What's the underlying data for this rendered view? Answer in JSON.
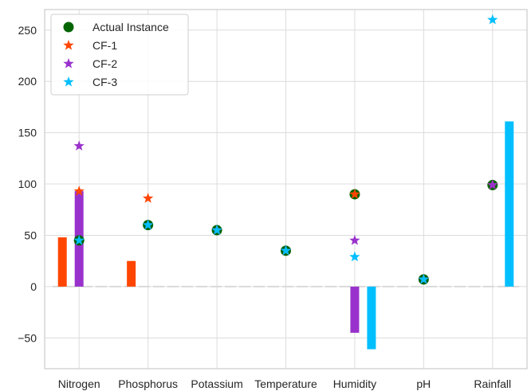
{
  "chart_data": {
    "type": "bar",
    "categories": [
      "Nitrogen",
      "Phosphorus",
      "Potassium",
      "Temperature",
      "Humidity",
      "pH",
      "Rainfall"
    ],
    "ylim": [
      -80,
      270
    ],
    "yticks": [
      -50,
      0,
      50,
      100,
      150,
      200,
      250
    ],
    "grid": true,
    "legend_position": "top-left",
    "bars": [
      {
        "name": "CF-1",
        "color": "#ff4500",
        "values": [
          48,
          25,
          0,
          0,
          0,
          0,
          0
        ]
      },
      {
        "name": "CF-2",
        "color": "#9932cc",
        "values": [
          93,
          0,
          0,
          0,
          -45,
          0,
          0
        ]
      },
      {
        "name": "CF-3",
        "color": "#00bfff",
        "values": [
          0,
          0,
          0,
          0,
          -61,
          0,
          161
        ]
      }
    ],
    "markers": [
      {
        "name": "Actual Instance",
        "shape": "circle",
        "color": "#006400",
        "values": [
          45,
          60,
          55,
          35,
          90,
          7,
          99
        ]
      },
      {
        "name": "CF-1",
        "shape": "star",
        "color": "#ff4500",
        "values": [
          93,
          86,
          55,
          35,
          90,
          7,
          99
        ]
      },
      {
        "name": "CF-2",
        "shape": "star",
        "color": "#9932cc",
        "values": [
          137,
          60,
          55,
          35,
          45,
          7,
          99
        ]
      },
      {
        "name": "CF-3",
        "shape": "star",
        "color": "#00bfff",
        "values": [
          45,
          60,
          55,
          35,
          29,
          7,
          260
        ]
      }
    ],
    "legend": [
      {
        "label": "Actual Instance",
        "shape": "circle",
        "color": "#006400"
      },
      {
        "label": "CF-1",
        "shape": "star",
        "color": "#ff4500"
      },
      {
        "label": "CF-2",
        "shape": "star",
        "color": "#9932cc"
      },
      {
        "label": "CF-3",
        "shape": "star",
        "color": "#00bfff"
      }
    ],
    "zero_line_color": "#d9d9d9"
  }
}
